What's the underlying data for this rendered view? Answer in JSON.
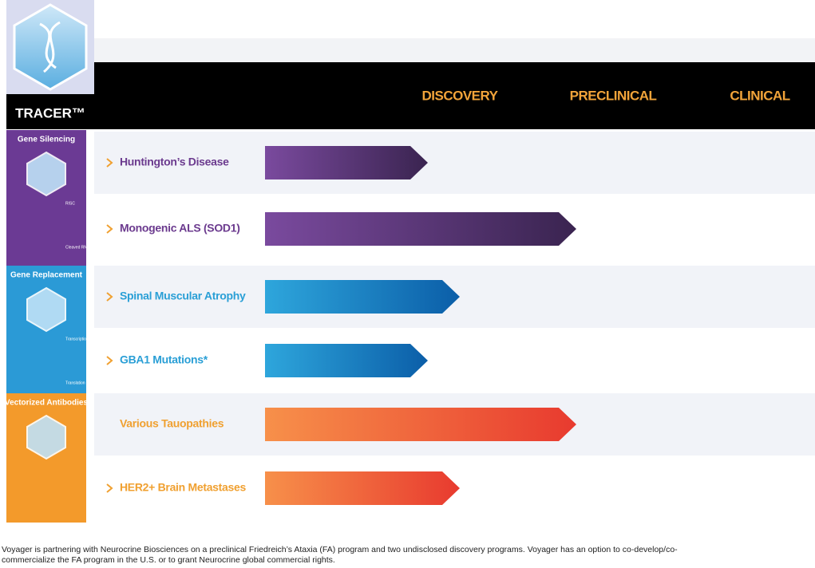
{
  "brand": "TRACER™",
  "header": {
    "columns": [
      "DISCOVERY",
      "PRECLINICAL",
      "CLINICAL"
    ]
  },
  "sections": [
    {
      "label": "Gene Silencing",
      "notes": [
        "RISC",
        "Cleaved RNA"
      ],
      "rows": [
        {
          "name": "Huntington’s Disease"
        },
        {
          "name": "Monogenic ALS (SOD1)"
        }
      ]
    },
    {
      "label": "Gene Replacement",
      "notes": [
        "Transcription",
        "Translation"
      ],
      "rows": [
        {
          "name": "Spinal Muscular Atrophy"
        },
        {
          "name": "GBA1 Mutations*"
        }
      ]
    },
    {
      "label": "Vectorized Antibodies",
      "notes": [],
      "rows": [
        {
          "name": "Various Tauopathies"
        },
        {
          "name": "HER2+ Brain Metastases"
        }
      ]
    }
  ],
  "footnote": [
    "Voyager is partnering with Neurocrine Biosciences on a preclinical Friedreich’s Ataxia (FA) program and two undisclosed discovery programs. Voyager has an option to co-develop/co-",
    "commercialize the FA program in the U.S. or to grant Neurocrine global commercial rights."
  ]
}
